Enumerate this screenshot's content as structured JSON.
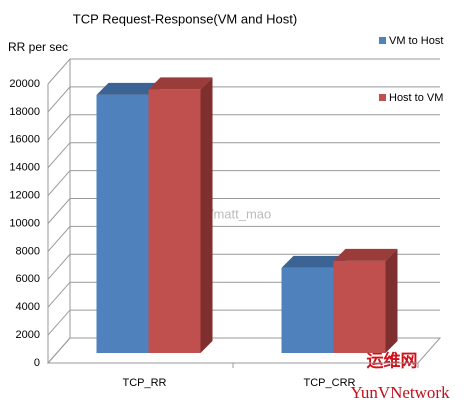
{
  "chart_data": {
    "type": "bar3d",
    "title": "TCP Request-Response(VM and Host)",
    "y_label": "RR per sec",
    "categories": [
      "TCP_RR",
      "TCP_CRR"
    ],
    "series": [
      {
        "name": "VM to Host",
        "color": "#4f81bd",
        "values": [
          18500,
          6100
        ]
      },
      {
        "name": "Host to VM",
        "color": "#c0504d",
        "values": [
          18900,
          6600
        ]
      }
    ],
    "ylim": [
      0,
      20000
    ],
    "yticks": [
      0,
      2000,
      4000,
      6000,
      8000,
      10000,
      12000,
      14000,
      16000,
      18000,
      20000
    ],
    "grid": true,
    "legend": "right",
    "watermark": "http://blog.csdn.net/matt_mao",
    "logo": {
      "top": "运维网",
      "bottom": "YunVNetwork"
    }
  }
}
